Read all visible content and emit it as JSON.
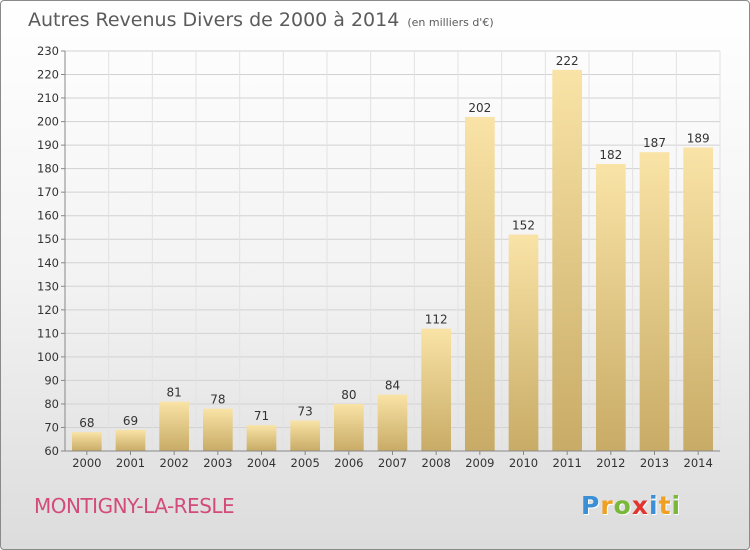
{
  "chart_data": {
    "type": "bar",
    "title": "Autres Revenus Divers de 2000 à 2014",
    "subtitle": "(en milliers d'€)",
    "categories": [
      "2000",
      "2001",
      "2002",
      "2003",
      "2004",
      "2005",
      "2006",
      "2007",
      "2008",
      "2009",
      "2010",
      "2011",
      "2012",
      "2013",
      "2014"
    ],
    "values": [
      68,
      69,
      81,
      78,
      71,
      73,
      80,
      84,
      112,
      202,
      152,
      222,
      182,
      187,
      189
    ],
    "ylim": [
      60,
      230
    ],
    "yticks": [
      60,
      70,
      80,
      90,
      100,
      110,
      120,
      130,
      140,
      150,
      160,
      170,
      180,
      190,
      200,
      210,
      220,
      230
    ],
    "grid": true,
    "bar_color": "#e8c87a"
  },
  "location_label": "MONTIGNY-LA-RESLE",
  "logo": {
    "letters": [
      "P",
      "r",
      "o",
      "x",
      "i",
      "t",
      "i"
    ],
    "colors": [
      "#3a8fd6",
      "#f0a020",
      "#7ab83a",
      "#e2352f",
      "#3a8fd6",
      "#f0a020",
      "#7ab83a"
    ]
  }
}
